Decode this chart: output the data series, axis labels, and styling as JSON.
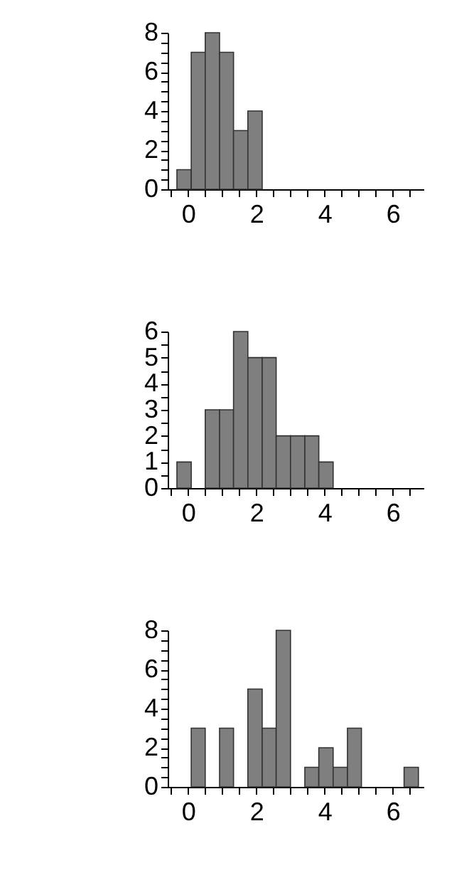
{
  "chart_data": [
    {
      "type": "histogram",
      "color": "#7f7f7f",
      "bins": [
        -0.33,
        0.09,
        0.5,
        0.92,
        1.33,
        1.75,
        2.17,
        2.58,
        3.0,
        3.42,
        3.83,
        4.25,
        4.67,
        5.08,
        5.5,
        5.92,
        6.33,
        6.75
      ],
      "values": [
        1,
        7,
        8,
        7,
        3,
        4,
        0,
        0,
        0,
        0,
        0,
        0,
        0,
        0,
        0,
        0,
        0
      ],
      "xlim": [
        -0.6,
        6.9
      ],
      "ylim": [
        0,
        8
      ],
      "xticks": [
        {
          "value": -0.5,
          "label": null
        },
        0,
        {
          "value": 0.5,
          "label": null
        },
        {
          "value": 1,
          "label": null
        },
        {
          "value": 1.5,
          "label": null
        },
        2,
        {
          "value": 2.5,
          "label": null
        },
        {
          "value": 3,
          "label": null
        },
        {
          "value": 3.5,
          "label": null
        },
        4,
        {
          "value": 4.5,
          "label": null
        },
        {
          "value": 5,
          "label": null
        },
        {
          "value": 5.5,
          "label": null
        },
        6,
        {
          "value": 6.5,
          "label": null
        }
      ],
      "yticks": [
        0,
        {
          "value": 0.5,
          "label": null
        },
        {
          "value": 1,
          "label": null
        },
        {
          "value": 1.5,
          "label": null
        },
        2,
        {
          "value": 2.5,
          "label": null
        },
        {
          "value": 3,
          "label": null
        },
        {
          "value": 3.5,
          "label": null
        },
        4,
        {
          "value": 4.5,
          "label": null
        },
        {
          "value": 5,
          "label": null
        },
        {
          "value": 5.5,
          "label": null
        },
        6,
        {
          "value": 6.5,
          "label": null
        },
        {
          "value": 7,
          "label": null
        },
        {
          "value": 7.5,
          "label": null
        },
        8
      ],
      "grid": false
    },
    {
      "type": "histogram",
      "color": "#7f7f7f",
      "bins": [
        -0.33,
        0.09,
        0.5,
        0.92,
        1.33,
        1.75,
        2.17,
        2.58,
        3.0,
        3.42,
        3.83,
        4.25,
        4.67,
        5.08,
        5.5,
        5.92,
        6.33,
        6.75
      ],
      "values": [
        1,
        0,
        3,
        3,
        6,
        5,
        5,
        2,
        2,
        2,
        1,
        0,
        0,
        0,
        0,
        0,
        0
      ],
      "xlim": [
        -0.6,
        6.9
      ],
      "ylim": [
        0,
        6
      ],
      "xticks": [
        {
          "value": -0.5,
          "label": null
        },
        0,
        {
          "value": 0.5,
          "label": null
        },
        {
          "value": 1,
          "label": null
        },
        {
          "value": 1.5,
          "label": null
        },
        2,
        {
          "value": 2.5,
          "label": null
        },
        {
          "value": 3,
          "label": null
        },
        {
          "value": 3.5,
          "label": null
        },
        4,
        {
          "value": 4.5,
          "label": null
        },
        {
          "value": 5,
          "label": null
        },
        {
          "value": 5.5,
          "label": null
        },
        6,
        {
          "value": 6.5,
          "label": null
        }
      ],
      "yticks": [
        0,
        {
          "value": 0.5,
          "label": null
        },
        1,
        {
          "value": 1.5,
          "label": null
        },
        2,
        {
          "value": 2.5,
          "label": null
        },
        3,
        {
          "value": 3.5,
          "label": null
        },
        4,
        {
          "value": 4.5,
          "label": null
        },
        5,
        {
          "value": 5.5,
          "label": null
        },
        6
      ],
      "grid": false
    },
    {
      "type": "histogram",
      "color": "#7f7f7f",
      "bins": [
        -0.33,
        0.09,
        0.5,
        0.92,
        1.33,
        1.75,
        2.17,
        2.58,
        3.0,
        3.42,
        3.83,
        4.25,
        4.67,
        5.08,
        5.5,
        5.92,
        6.33,
        6.75
      ],
      "values": [
        0,
        3,
        0,
        3,
        0,
        5,
        3,
        8,
        0,
        1,
        2,
        1,
        3,
        0,
        0,
        0,
        1
      ],
      "xlim": [
        -0.6,
        6.9
      ],
      "ylim": [
        0,
        8
      ],
      "xticks": [
        {
          "value": -0.5,
          "label": null
        },
        0,
        {
          "value": 0.5,
          "label": null
        },
        {
          "value": 1,
          "label": null
        },
        {
          "value": 1.5,
          "label": null
        },
        2,
        {
          "value": 2.5,
          "label": null
        },
        {
          "value": 3,
          "label": null
        },
        {
          "value": 3.5,
          "label": null
        },
        4,
        {
          "value": 4.5,
          "label": null
        },
        {
          "value": 5,
          "label": null
        },
        {
          "value": 5.5,
          "label": null
        },
        6,
        {
          "value": 6.5,
          "label": null
        }
      ],
      "yticks": [
        0,
        {
          "value": 0.5,
          "label": null
        },
        {
          "value": 1,
          "label": null
        },
        {
          "value": 1.5,
          "label": null
        },
        2,
        {
          "value": 2.5,
          "label": null
        },
        {
          "value": 3,
          "label": null
        },
        {
          "value": 3.5,
          "label": null
        },
        4,
        {
          "value": 4.5,
          "label": null
        },
        {
          "value": 5,
          "label": null
        },
        {
          "value": 5.5,
          "label": null
        },
        6,
        {
          "value": 6.5,
          "label": null
        },
        {
          "value": 7,
          "label": null
        },
        {
          "value": 7.5,
          "label": null
        },
        8
      ],
      "grid": false
    }
  ]
}
